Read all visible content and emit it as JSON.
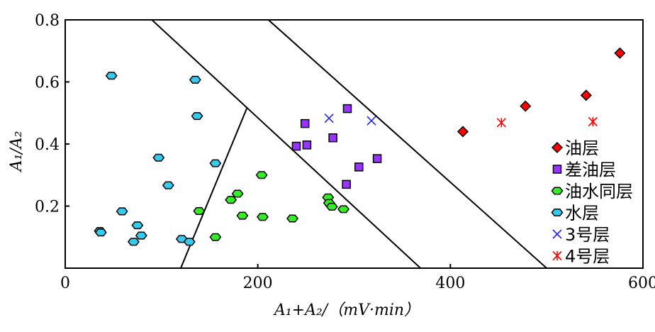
{
  "chart_data": {
    "type": "scatter",
    "xlim": [
      0,
      600
    ],
    "ylim": [
      0,
      0.8
    ],
    "x_ticks": [
      0,
      200,
      400,
      600
    ],
    "y_ticks": [
      0.2,
      0.4,
      0.6,
      0.8
    ],
    "x_tick_labels": [
      "0",
      "200",
      "400",
      "600"
    ],
    "y_tick_labels": [
      "0.2",
      "0.4",
      "0.6",
      "0.8"
    ],
    "xlabel": "A₁+A₂/（mV·min）",
    "ylabel": "A₁/A₂",
    "grid": false,
    "legend_position": "bottom-right",
    "series": [
      {
        "name": "油层",
        "marker": "diamond",
        "color": "#ff0000",
        "points": [
          [
            413,
            0.44
          ],
          [
            478,
            0.522
          ],
          [
            541,
            0.557
          ],
          [
            576,
            0.693
          ]
        ]
      },
      {
        "name": "差油层",
        "marker": "square",
        "color": "#9933ff",
        "points": [
          [
            240,
            0.393
          ],
          [
            249,
            0.466
          ],
          [
            251,
            0.397
          ],
          [
            278,
            0.42
          ],
          [
            293,
            0.514
          ],
          [
            292,
            0.27
          ],
          [
            305,
            0.326
          ],
          [
            324,
            0.353
          ]
        ]
      },
      {
        "name": "油水同层",
        "marker": "hexagon",
        "color": "#33ee22",
        "points": [
          [
            139,
            0.184
          ],
          [
            156,
            0.1
          ],
          [
            172,
            0.22
          ],
          [
            179,
            0.24
          ],
          [
            184,
            0.169
          ],
          [
            204,
            0.3
          ],
          [
            205,
            0.165
          ],
          [
            236,
            0.16
          ],
          [
            273,
            0.228
          ],
          [
            274,
            0.21
          ],
          [
            277,
            0.198
          ],
          [
            289,
            0.19
          ]
        ]
      },
      {
        "name": "水层",
        "marker": "hexagon",
        "color": "#33ccee",
        "points": [
          [
            36,
            0.12
          ],
          [
            37,
            0.115
          ],
          [
            48,
            0.62
          ],
          [
            59,
            0.183
          ],
          [
            71,
            0.085
          ],
          [
            75,
            0.138
          ],
          [
            79,
            0.105
          ],
          [
            97,
            0.356
          ],
          [
            107,
            0.267
          ],
          [
            121,
            0.094
          ],
          [
            129,
            0.085
          ],
          [
            135,
            0.607
          ],
          [
            137,
            0.49
          ],
          [
            156,
            0.338
          ]
        ]
      },
      {
        "name": "3号层",
        "marker": "x",
        "color": "#2222ee",
        "points": [
          [
            274,
            0.483
          ],
          [
            318,
            0.475
          ]
        ]
      },
      {
        "name": "4号层",
        "marker": "asterisk",
        "color": "#ff0000",
        "points": [
          [
            453,
            0.469
          ],
          [
            548,
            0.472
          ]
        ]
      }
    ],
    "lines": [
      {
        "x1": 120,
        "y1": 0.0,
        "x2": 189,
        "y2": 0.518
      },
      {
        "x1": 90,
        "y1": 0.8,
        "x2": 369,
        "y2": 0.0
      },
      {
        "x1": 211,
        "y1": 0.8,
        "x2": 500,
        "y2": 0.0
      }
    ]
  }
}
